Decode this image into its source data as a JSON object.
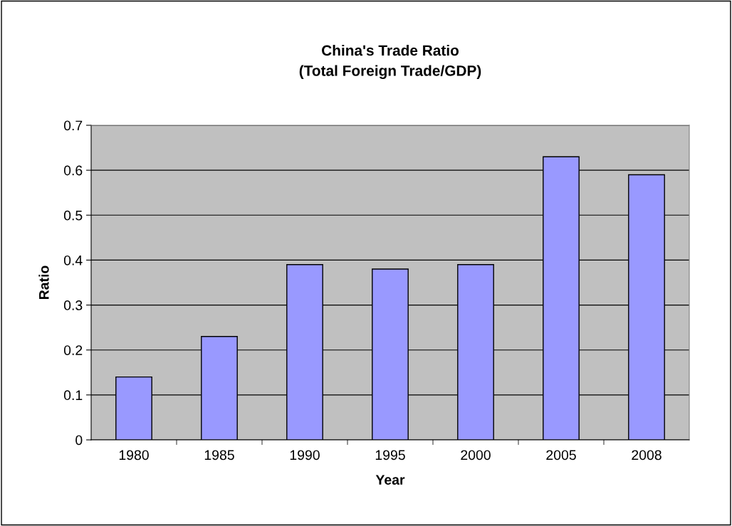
{
  "chart_data": {
    "type": "bar",
    "title": "China's Trade Ratio\n(Total Foreign Trade/GDP)",
    "xlabel": "Year",
    "ylabel": "Ratio",
    "categories": [
      "1980",
      "1985",
      "1990",
      "1995",
      "2000",
      "2005",
      "2008"
    ],
    "values": [
      0.14,
      0.23,
      0.39,
      0.38,
      0.39,
      0.63,
      0.59
    ],
    "color": "#9999ff",
    "ylim": [
      0,
      0.7
    ],
    "yticks": [
      0,
      0.1,
      0.2,
      0.3,
      0.4,
      0.5,
      0.6,
      0.7
    ],
    "grid": "y",
    "legend": false
  }
}
